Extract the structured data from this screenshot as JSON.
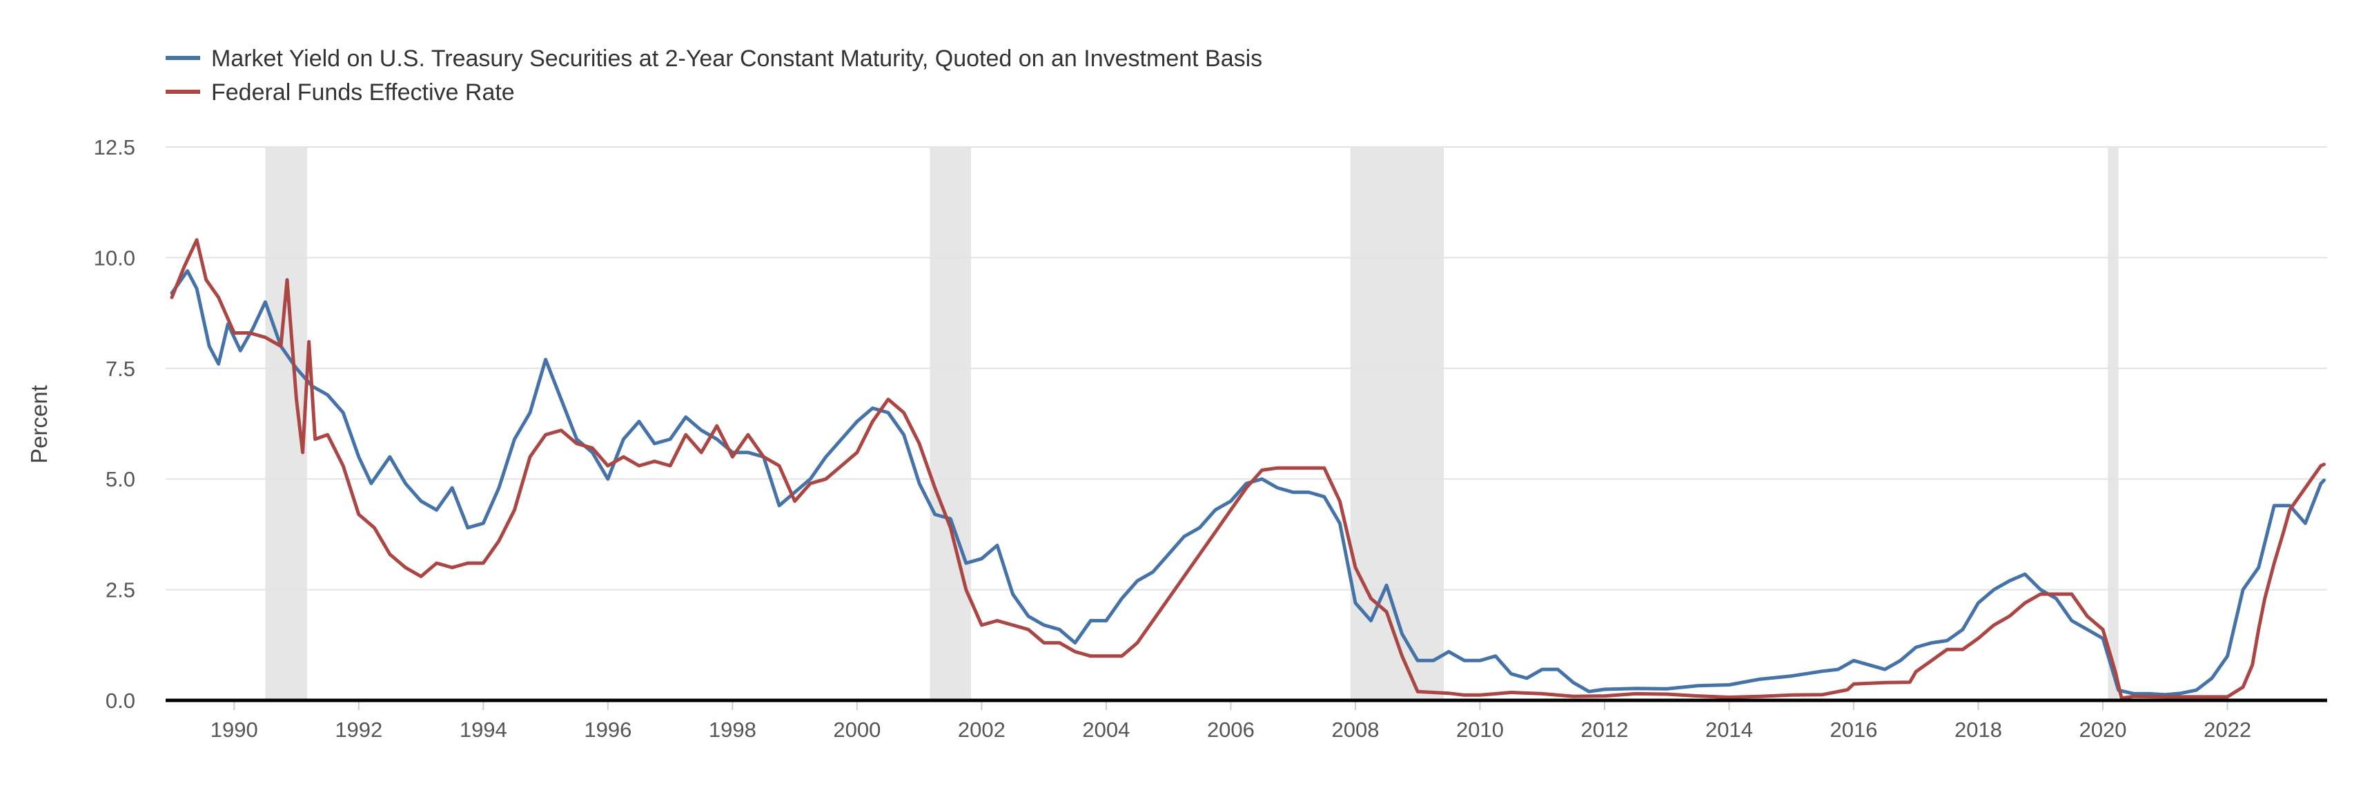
{
  "chart_data": {
    "type": "line",
    "ylabel": "Percent",
    "ylim": [
      0,
      12.5
    ],
    "xlim": [
      1988.9,
      2023.6
    ],
    "x_ticks": [
      "1990",
      "1992",
      "1994",
      "1996",
      "1998",
      "2000",
      "2002",
      "2004",
      "2006",
      "2008",
      "2010",
      "2012",
      "2014",
      "2016",
      "2018",
      "2020",
      "2022"
    ],
    "y_ticks": [
      "0.0",
      "2.5",
      "5.0",
      "7.5",
      "10.0",
      "12.5"
    ],
    "grid": "horizontal",
    "legend_position": "top-left",
    "recessions": [
      [
        1990.5,
        1991.17
      ],
      [
        2001.17,
        2001.83
      ],
      [
        2007.92,
        2009.42
      ],
      [
        2020.08,
        2020.25
      ]
    ],
    "series": [
      {
        "name": "Market Yield on U.S. Treasury Securities at 2-Year Constant Maturity, Quoted on an Investment Basis",
        "color": "#4572a7",
        "points": [
          [
            1989.0,
            9.2
          ],
          [
            1989.25,
            9.7
          ],
          [
            1989.4,
            9.3
          ],
          [
            1989.6,
            8.0
          ],
          [
            1989.75,
            7.6
          ],
          [
            1989.9,
            8.5
          ],
          [
            1990.1,
            7.9
          ],
          [
            1990.3,
            8.4
          ],
          [
            1990.5,
            9.0
          ],
          [
            1990.75,
            8.0
          ],
          [
            1991.0,
            7.5
          ],
          [
            1991.25,
            7.1
          ],
          [
            1991.5,
            6.9
          ],
          [
            1991.75,
            6.5
          ],
          [
            1992.0,
            5.5
          ],
          [
            1992.2,
            4.9
          ],
          [
            1992.5,
            5.5
          ],
          [
            1992.75,
            4.9
          ],
          [
            1993.0,
            4.5
          ],
          [
            1993.25,
            4.3
          ],
          [
            1993.5,
            4.8
          ],
          [
            1993.75,
            3.9
          ],
          [
            1994.0,
            4.0
          ],
          [
            1994.25,
            4.8
          ],
          [
            1994.5,
            5.9
          ],
          [
            1994.75,
            6.5
          ],
          [
            1995.0,
            7.7
          ],
          [
            1995.25,
            6.8
          ],
          [
            1995.5,
            5.9
          ],
          [
            1995.75,
            5.6
          ],
          [
            1996.0,
            5.0
          ],
          [
            1996.25,
            5.9
          ],
          [
            1996.5,
            6.3
          ],
          [
            1996.75,
            5.8
          ],
          [
            1997.0,
            5.9
          ],
          [
            1997.25,
            6.4
          ],
          [
            1997.5,
            6.1
          ],
          [
            1997.75,
            5.9
          ],
          [
            1998.0,
            5.6
          ],
          [
            1998.25,
            5.6
          ],
          [
            1998.5,
            5.5
          ],
          [
            1998.75,
            4.4
          ],
          [
            1999.0,
            4.7
          ],
          [
            1999.25,
            5.0
          ],
          [
            1999.5,
            5.5
          ],
          [
            1999.75,
            5.9
          ],
          [
            2000.0,
            6.3
          ],
          [
            2000.25,
            6.6
          ],
          [
            2000.5,
            6.5
          ],
          [
            2000.75,
            6.0
          ],
          [
            2001.0,
            4.9
          ],
          [
            2001.25,
            4.2
          ],
          [
            2001.5,
            4.1
          ],
          [
            2001.75,
            3.1
          ],
          [
            2002.0,
            3.2
          ],
          [
            2002.25,
            3.5
          ],
          [
            2002.5,
            2.4
          ],
          [
            2002.75,
            1.9
          ],
          [
            2003.0,
            1.7
          ],
          [
            2003.25,
            1.6
          ],
          [
            2003.5,
            1.3
          ],
          [
            2003.75,
            1.8
          ],
          [
            2004.0,
            1.8
          ],
          [
            2004.25,
            2.3
          ],
          [
            2004.5,
            2.7
          ],
          [
            2004.75,
            2.9
          ],
          [
            2005.0,
            3.3
          ],
          [
            2005.25,
            3.7
          ],
          [
            2005.5,
            3.9
          ],
          [
            2005.75,
            4.3
          ],
          [
            2006.0,
            4.5
          ],
          [
            2006.25,
            4.9
          ],
          [
            2006.5,
            5.0
          ],
          [
            2006.75,
            4.8
          ],
          [
            2007.0,
            4.7
          ],
          [
            2007.25,
            4.7
          ],
          [
            2007.5,
            4.6
          ],
          [
            2007.75,
            4.0
          ],
          [
            2008.0,
            2.2
          ],
          [
            2008.25,
            1.8
          ],
          [
            2008.5,
            2.6
          ],
          [
            2008.75,
            1.5
          ],
          [
            2009.0,
            0.9
          ],
          [
            2009.25,
            0.9
          ],
          [
            2009.5,
            1.1
          ],
          [
            2009.75,
            0.9
          ],
          [
            2010.0,
            0.9
          ],
          [
            2010.25,
            1.0
          ],
          [
            2010.5,
            0.6
          ],
          [
            2010.75,
            0.5
          ],
          [
            2011.0,
            0.7
          ],
          [
            2011.25,
            0.7
          ],
          [
            2011.5,
            0.4
          ],
          [
            2011.75,
            0.2
          ],
          [
            2012.0,
            0.25
          ],
          [
            2012.5,
            0.27
          ],
          [
            2013.0,
            0.26
          ],
          [
            2013.5,
            0.33
          ],
          [
            2014.0,
            0.35
          ],
          [
            2014.5,
            0.48
          ],
          [
            2015.0,
            0.55
          ],
          [
            2015.5,
            0.66
          ],
          [
            2015.75,
            0.7
          ],
          [
            2016.0,
            0.9
          ],
          [
            2016.25,
            0.8
          ],
          [
            2016.5,
            0.7
          ],
          [
            2016.75,
            0.9
          ],
          [
            2017.0,
            1.2
          ],
          [
            2017.25,
            1.3
          ],
          [
            2017.5,
            1.35
          ],
          [
            2017.75,
            1.6
          ],
          [
            2018.0,
            2.2
          ],
          [
            2018.25,
            2.5
          ],
          [
            2018.5,
            2.7
          ],
          [
            2018.75,
            2.85
          ],
          [
            2019.0,
            2.5
          ],
          [
            2019.25,
            2.3
          ],
          [
            2019.5,
            1.8
          ],
          [
            2019.75,
            1.6
          ],
          [
            2020.0,
            1.4
          ],
          [
            2020.25,
            0.23
          ],
          [
            2020.5,
            0.15
          ],
          [
            2020.75,
            0.15
          ],
          [
            2021.0,
            0.13
          ],
          [
            2021.25,
            0.16
          ],
          [
            2021.5,
            0.23
          ],
          [
            2021.75,
            0.5
          ],
          [
            2022.0,
            1.0
          ],
          [
            2022.25,
            2.5
          ],
          [
            2022.5,
            3.0
          ],
          [
            2022.75,
            4.4
          ],
          [
            2023.0,
            4.4
          ],
          [
            2023.25,
            4.0
          ],
          [
            2023.5,
            4.9
          ],
          [
            2023.55,
            4.97
          ]
        ]
      },
      {
        "name": "Federal Funds Effective Rate",
        "color": "#aa4643",
        "points": [
          [
            1989.0,
            9.1
          ],
          [
            1989.2,
            9.8
          ],
          [
            1989.4,
            10.4
          ],
          [
            1989.55,
            9.5
          ],
          [
            1989.75,
            9.1
          ],
          [
            1990.0,
            8.3
          ],
          [
            1990.25,
            8.3
          ],
          [
            1990.5,
            8.2
          ],
          [
            1990.75,
            8.0
          ],
          [
            1990.85,
            9.5
          ],
          [
            1991.0,
            6.8
          ],
          [
            1991.1,
            5.6
          ],
          [
            1991.2,
            8.1
          ],
          [
            1991.3,
            5.9
          ],
          [
            1991.5,
            6.0
          ],
          [
            1991.75,
            5.3
          ],
          [
            1992.0,
            4.2
          ],
          [
            1992.25,
            3.9
          ],
          [
            1992.5,
            3.3
          ],
          [
            1992.75,
            3.0
          ],
          [
            1993.0,
            2.8
          ],
          [
            1993.25,
            3.1
          ],
          [
            1993.5,
            3.0
          ],
          [
            1993.75,
            3.1
          ],
          [
            1994.0,
            3.1
          ],
          [
            1994.25,
            3.6
          ],
          [
            1994.5,
            4.3
          ],
          [
            1994.75,
            5.5
          ],
          [
            1995.0,
            6.0
          ],
          [
            1995.25,
            6.1
          ],
          [
            1995.5,
            5.8
          ],
          [
            1995.75,
            5.7
          ],
          [
            1996.0,
            5.3
          ],
          [
            1996.25,
            5.5
          ],
          [
            1996.5,
            5.3
          ],
          [
            1996.75,
            5.4
          ],
          [
            1997.0,
            5.3
          ],
          [
            1997.25,
            6.0
          ],
          [
            1997.5,
            5.6
          ],
          [
            1997.75,
            6.2
          ],
          [
            1998.0,
            5.5
          ],
          [
            1998.25,
            6.0
          ],
          [
            1998.5,
            5.5
          ],
          [
            1998.75,
            5.3
          ],
          [
            1999.0,
            4.5
          ],
          [
            1999.25,
            4.9
          ],
          [
            1999.5,
            5.0
          ],
          [
            1999.75,
            5.3
          ],
          [
            2000.0,
            5.6
          ],
          [
            2000.25,
            6.3
          ],
          [
            2000.5,
            6.8
          ],
          [
            2000.75,
            6.5
          ],
          [
            2001.0,
            5.8
          ],
          [
            2001.25,
            4.8
          ],
          [
            2001.5,
            3.9
          ],
          [
            2001.75,
            2.5
          ],
          [
            2002.0,
            1.7
          ],
          [
            2002.25,
            1.8
          ],
          [
            2002.5,
            1.7
          ],
          [
            2002.75,
            1.6
          ],
          [
            2003.0,
            1.3
          ],
          [
            2003.25,
            1.3
          ],
          [
            2003.5,
            1.1
          ],
          [
            2003.75,
            1.0
          ],
          [
            2004.0,
            1.0
          ],
          [
            2004.25,
            1.0
          ],
          [
            2004.5,
            1.3
          ],
          [
            2004.75,
            1.8
          ],
          [
            2005.0,
            2.3
          ],
          [
            2005.25,
            2.8
          ],
          [
            2005.5,
            3.3
          ],
          [
            2005.75,
            3.8
          ],
          [
            2006.0,
            4.3
          ],
          [
            2006.25,
            4.8
          ],
          [
            2006.5,
            5.2
          ],
          [
            2006.75,
            5.25
          ],
          [
            2007.0,
            5.25
          ],
          [
            2007.25,
            5.25
          ],
          [
            2007.5,
            5.25
          ],
          [
            2007.75,
            4.5
          ],
          [
            2008.0,
            3.0
          ],
          [
            2008.25,
            2.3
          ],
          [
            2008.5,
            2.0
          ],
          [
            2008.75,
            1.0
          ],
          [
            2009.0,
            0.2
          ],
          [
            2009.25,
            0.18
          ],
          [
            2009.5,
            0.16
          ],
          [
            2009.75,
            0.12
          ],
          [
            2010.0,
            0.12
          ],
          [
            2010.5,
            0.18
          ],
          [
            2011.0,
            0.15
          ],
          [
            2011.5,
            0.09
          ],
          [
            2012.0,
            0.1
          ],
          [
            2012.5,
            0.15
          ],
          [
            2013.0,
            0.14
          ],
          [
            2013.5,
            0.1
          ],
          [
            2014.0,
            0.07
          ],
          [
            2014.5,
            0.09
          ],
          [
            2015.0,
            0.12
          ],
          [
            2015.5,
            0.13
          ],
          [
            2015.9,
            0.24
          ],
          [
            2016.0,
            0.37
          ],
          [
            2016.5,
            0.4
          ],
          [
            2016.9,
            0.41
          ],
          [
            2017.0,
            0.65
          ],
          [
            2017.25,
            0.9
          ],
          [
            2017.5,
            1.15
          ],
          [
            2017.75,
            1.15
          ],
          [
            2018.0,
            1.4
          ],
          [
            2018.25,
            1.7
          ],
          [
            2018.5,
            1.9
          ],
          [
            2018.75,
            2.2
          ],
          [
            2019.0,
            2.4
          ],
          [
            2019.25,
            2.4
          ],
          [
            2019.5,
            2.4
          ],
          [
            2019.75,
            1.9
          ],
          [
            2020.0,
            1.6
          ],
          [
            2020.2,
            0.65
          ],
          [
            2020.3,
            0.05
          ],
          [
            2020.5,
            0.09
          ],
          [
            2021.0,
            0.08
          ],
          [
            2021.5,
            0.08
          ],
          [
            2022.0,
            0.08
          ],
          [
            2022.25,
            0.3
          ],
          [
            2022.4,
            0.8
          ],
          [
            2022.5,
            1.6
          ],
          [
            2022.6,
            2.3
          ],
          [
            2022.75,
            3.1
          ],
          [
            2022.9,
            3.8
          ],
          [
            2023.0,
            4.3
          ],
          [
            2023.25,
            4.8
          ],
          [
            2023.4,
            5.1
          ],
          [
            2023.5,
            5.3
          ],
          [
            2023.55,
            5.33
          ]
        ]
      }
    ]
  }
}
